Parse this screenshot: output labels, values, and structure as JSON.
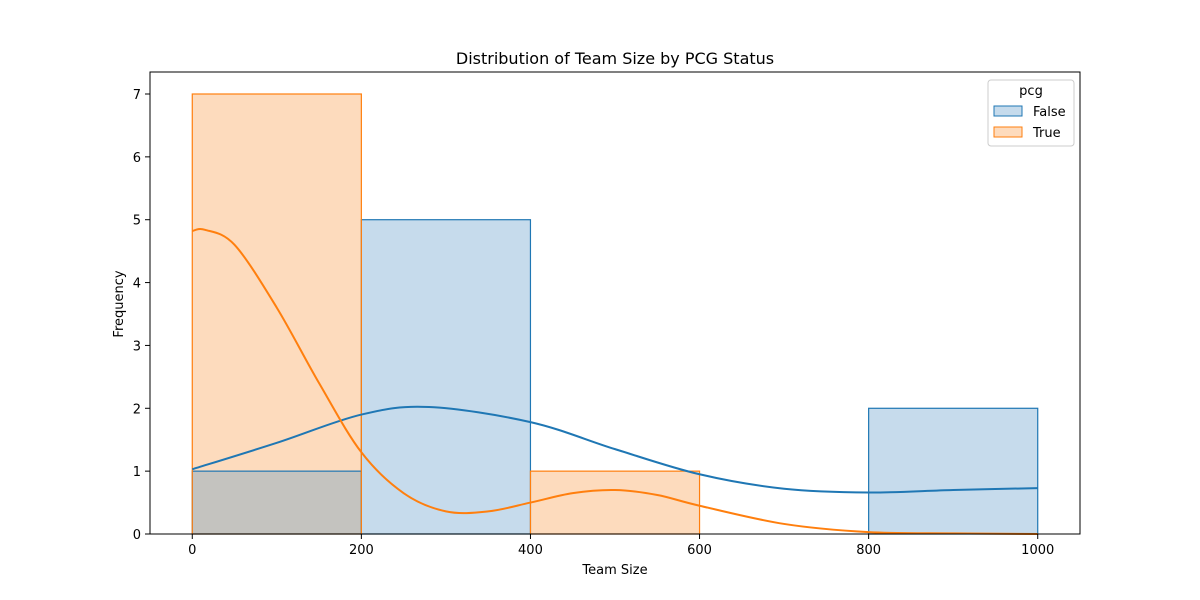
{
  "chart_data": {
    "type": "histogram",
    "title": "Distribution of Team Size by PCG Status",
    "xlabel": "Team Size",
    "ylabel": "Frequency",
    "xlim": [
      -50,
      1050
    ],
    "ylim": [
      0,
      7.35
    ],
    "xticks": [
      0,
      200,
      400,
      600,
      800,
      1000
    ],
    "yticks": [
      0,
      1,
      2,
      3,
      4,
      5,
      6,
      7
    ],
    "bin_edges": [
      0,
      200,
      400,
      600,
      800,
      1000
    ],
    "legend": {
      "title": "pcg",
      "position": "top-right"
    },
    "series": [
      {
        "name": "False",
        "color": "#1f77b4",
        "fill": "#c6dbec",
        "counts": [
          1,
          5,
          0,
          0,
          2
        ],
        "kde": [
          [
            0,
            1.03
          ],
          [
            100,
            1.45
          ],
          [
            200,
            1.9
          ],
          [
            280,
            2.02
          ],
          [
            400,
            1.78
          ],
          [
            500,
            1.35
          ],
          [
            600,
            0.95
          ],
          [
            700,
            0.72
          ],
          [
            800,
            0.66
          ],
          [
            900,
            0.7
          ],
          [
            1000,
            0.73
          ]
        ]
      },
      {
        "name": "True",
        "color": "#ff7f0e",
        "fill": "#fddbbd",
        "counts": [
          7,
          0,
          1,
          0,
          0
        ],
        "kde": [
          [
            0,
            4.82
          ],
          [
            15,
            4.84
          ],
          [
            50,
            4.6
          ],
          [
            100,
            3.6
          ],
          [
            150,
            2.4
          ],
          [
            200,
            1.3
          ],
          [
            250,
            0.65
          ],
          [
            300,
            0.36
          ],
          [
            350,
            0.36
          ],
          [
            400,
            0.5
          ],
          [
            450,
            0.65
          ],
          [
            500,
            0.7
          ],
          [
            550,
            0.62
          ],
          [
            600,
            0.45
          ],
          [
            700,
            0.16
          ],
          [
            800,
            0.03
          ],
          [
            900,
            0.01
          ],
          [
            1000,
            0.0
          ]
        ]
      }
    ],
    "overlap_fill": "#c4c3bf"
  }
}
